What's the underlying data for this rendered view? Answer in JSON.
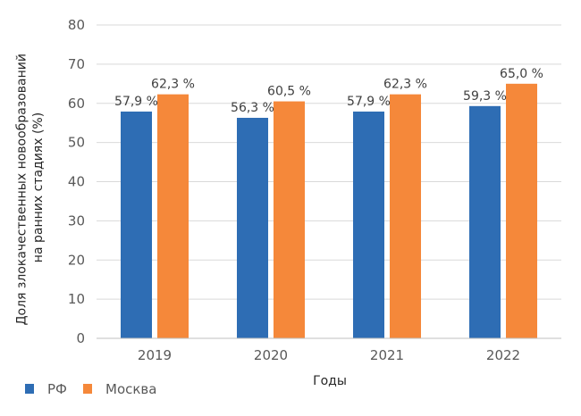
{
  "chart_data": {
    "type": "bar",
    "categories": [
      "2019",
      "2020",
      "2021",
      "2022"
    ],
    "series": [
      {
        "name": "РФ",
        "values": [
          57.9,
          56.3,
          57.9,
          59.3
        ],
        "labels": [
          "57,9 %",
          "56,3 %",
          "57,9 %",
          "59,3 %"
        ],
        "color": "#2e6db4"
      },
      {
        "name": "Москва",
        "values": [
          62.3,
          60.5,
          62.3,
          65.0
        ],
        "labels": [
          "62,3 %",
          "60,5 %",
          "62,3 %",
          "65,0 %"
        ],
        "color": "#f5883a"
      }
    ],
    "xlabel": "Годы",
    "ylabel_lines": [
      "Доля злокачественных новообразований",
      "на ранних стадиях (%)"
    ],
    "ylim": [
      0,
      80
    ],
    "yticks": [
      0,
      10,
      20,
      30,
      40,
      50,
      60,
      70,
      80
    ],
    "grid": true,
    "grid_color": "#d9d9d9",
    "legend_position": "bottom-left"
  }
}
